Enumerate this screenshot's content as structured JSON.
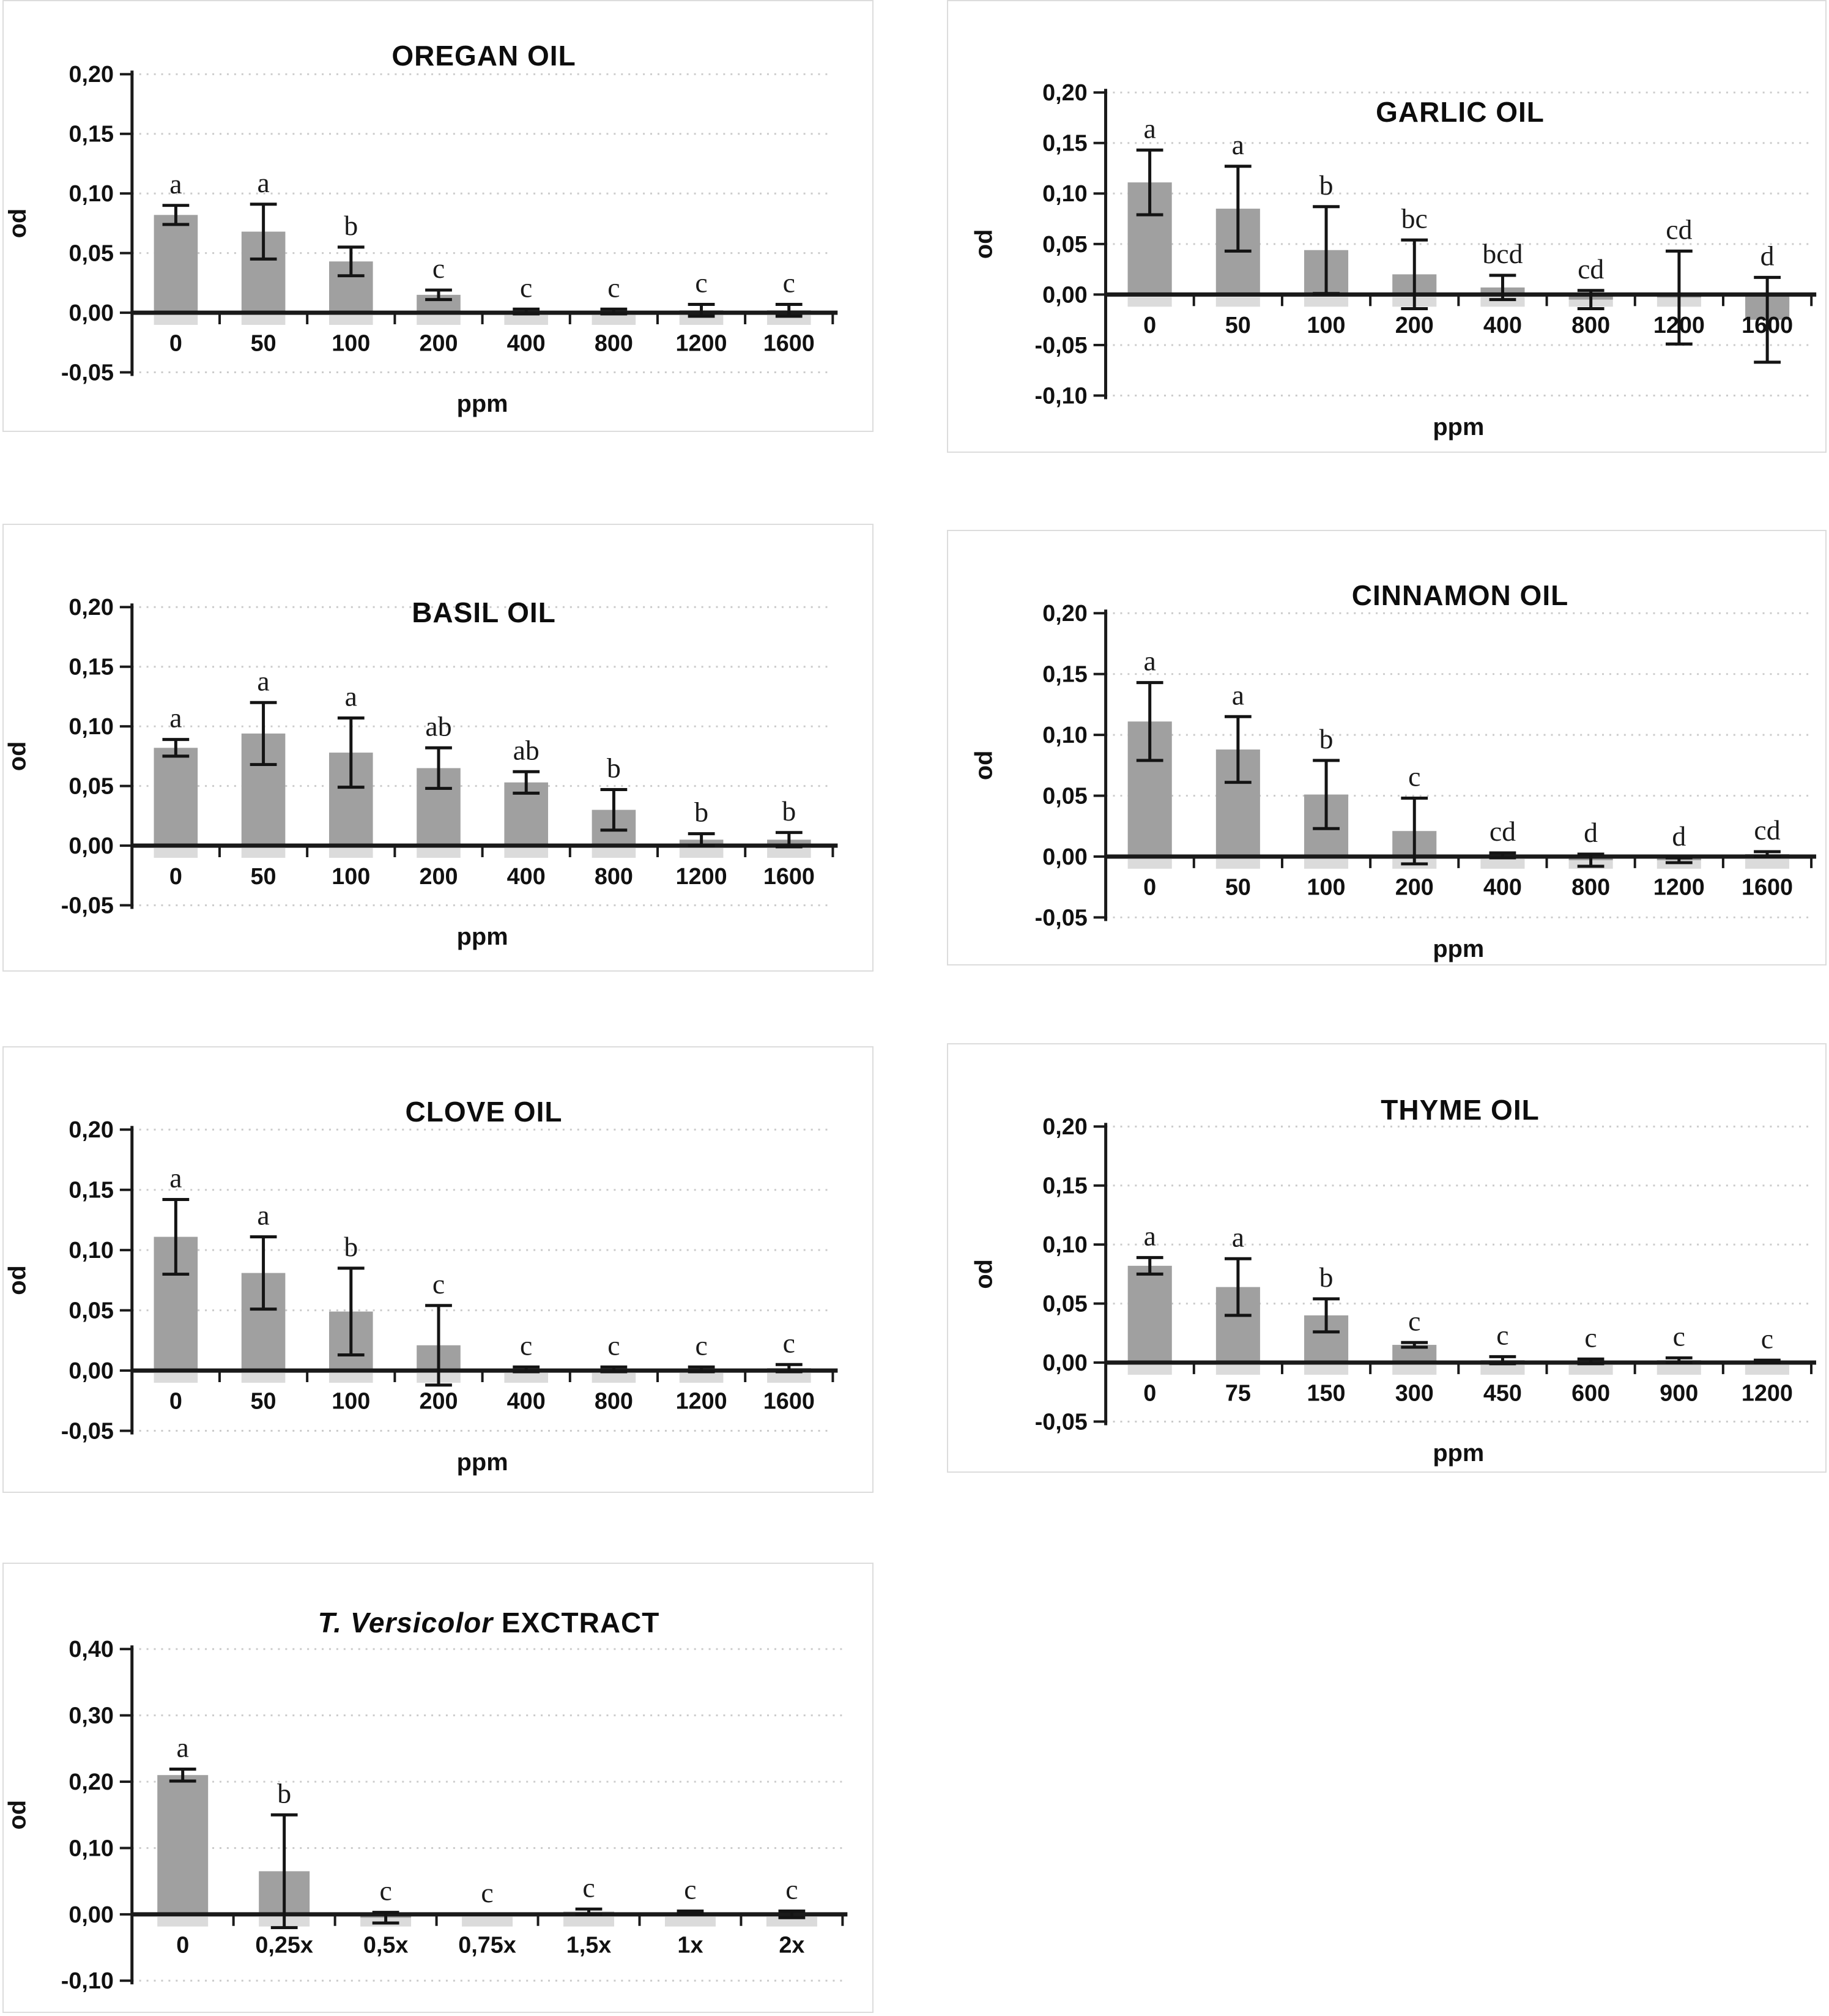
{
  "style": {
    "bar_fill": "#a0a0a0",
    "bar_shadow": "#dbdbdb",
    "axis": "#1a1a1a",
    "grid": "#cbcbcb",
    "error": "#141414",
    "panel_border": "#dcdcdc",
    "background": "#ffffff"
  },
  "chart_data": [
    {
      "type": "bar",
      "title": "OREGAN OIL",
      "xlabel": "ppm",
      "ylabel": "od",
      "categories": [
        "0",
        "50",
        "100",
        "200",
        "400",
        "800",
        "1200",
        "1600"
      ],
      "values": [
        0.082,
        0.068,
        0.043,
        0.015,
        0.001,
        0.001,
        0.002,
        0.002
      ],
      "errors": [
        0.008,
        0.023,
        0.012,
        0.004,
        0.002,
        0.002,
        0.005,
        0.005
      ],
      "letters": [
        "a",
        "a",
        "b",
        "c",
        "c",
        "c",
        "c",
        "c"
      ],
      "ylim": [
        -0.05,
        0.2
      ],
      "ystep": 0.05,
      "yticks": [
        "0,20",
        "0,15",
        "0,10",
        "0,05",
        "0,00",
        "-0,05"
      ],
      "grid": true,
      "legend": null
    },
    {
      "type": "bar",
      "title": "GARLIC OIL",
      "xlabel": "ppm",
      "ylabel": "od",
      "categories": [
        "0",
        "50",
        "100",
        "200",
        "400",
        "800",
        "1200",
        "1600"
      ],
      "values": [
        0.111,
        0.085,
        0.044,
        0.02,
        0.007,
        -0.005,
        -0.003,
        -0.025
      ],
      "errors": [
        0.032,
        0.042,
        0.043,
        0.034,
        0.012,
        0.009,
        0.046,
        0.042
      ],
      "letters": [
        "a",
        "a",
        "b",
        "bc",
        "bcd",
        "cd",
        "cd",
        "d"
      ],
      "ylim": [
        -0.1,
        0.2
      ],
      "ystep": 0.05,
      "yticks": [
        "0,20",
        "0,15",
        "0,10",
        "0,05",
        "0,00",
        "-0,05",
        "-0,10"
      ],
      "grid": true,
      "legend": null
    },
    {
      "type": "bar",
      "title": "BASIL OIL",
      "xlabel": "ppm",
      "ylabel": "od",
      "categories": [
        "0",
        "50",
        "100",
        "200",
        "400",
        "800",
        "1200",
        "1600"
      ],
      "values": [
        0.082,
        0.094,
        0.078,
        0.065,
        0.053,
        0.03,
        0.005,
        0.005
      ],
      "errors": [
        0.007,
        0.026,
        0.029,
        0.017,
        0.009,
        0.017,
        0.005,
        0.006
      ],
      "letters": [
        "a",
        "a",
        "a",
        "ab",
        "ab",
        "b",
        "b",
        "b"
      ],
      "ylim": [
        -0.05,
        0.2
      ],
      "ystep": 0.05,
      "yticks": [
        "0,20",
        "0,15",
        "0,10",
        "0,05",
        "0,00",
        "-0,05"
      ],
      "grid": true,
      "legend": null
    },
    {
      "type": "bar",
      "title": "CINNAMON OIL",
      "xlabel": "ppm",
      "ylabel": "od",
      "categories": [
        "0",
        "50",
        "100",
        "200",
        "400",
        "800",
        "1200",
        "1600"
      ],
      "values": [
        0.111,
        0.088,
        0.051,
        0.021,
        0.001,
        -0.003,
        -0.003,
        0.002
      ],
      "errors": [
        0.032,
        0.027,
        0.028,
        0.027,
        0.002,
        0.005,
        0.002,
        0.002
      ],
      "letters": [
        "a",
        "a",
        "b",
        "c",
        "cd",
        "d",
        "d",
        "cd"
      ],
      "ylim": [
        -0.05,
        0.2
      ],
      "ystep": 0.05,
      "yticks": [
        "0,20",
        "0,15",
        "0,10",
        "0,05",
        "0,00",
        "-0,05"
      ],
      "grid": true,
      "legend": null
    },
    {
      "type": "bar",
      "title": "CLOVE OIL",
      "xlabel": "ppm",
      "ylabel": "od",
      "categories": [
        "0",
        "50",
        "100",
        "200",
        "400",
        "800",
        "1200",
        "1600"
      ],
      "values": [
        0.111,
        0.081,
        0.049,
        0.021,
        0.001,
        0.001,
        0.001,
        0.002
      ],
      "errors": [
        0.031,
        0.03,
        0.036,
        0.033,
        0.002,
        0.002,
        0.002,
        0.003
      ],
      "letters": [
        "a",
        "a",
        "b",
        "c",
        "c",
        "c",
        "c",
        "c"
      ],
      "ylim": [
        -0.05,
        0.2
      ],
      "ystep": 0.05,
      "yticks": [
        "0,20",
        "0,15",
        "0,10",
        "0,05",
        "0,00",
        "-0,05"
      ],
      "grid": true,
      "legend": null
    },
    {
      "type": "bar",
      "title": "THYME OIL",
      "xlabel": "ppm",
      "ylabel": "od",
      "categories": [
        "0",
        "75",
        "150",
        "300",
        "450",
        "600",
        "900",
        "1200"
      ],
      "values": [
        0.082,
        0.064,
        0.04,
        0.015,
        0.002,
        0.001,
        0.002,
        0.001
      ],
      "errors": [
        0.007,
        0.024,
        0.014,
        0.002,
        0.003,
        0.002,
        0.002,
        0.001
      ],
      "letters": [
        "a",
        "a",
        "b",
        "c",
        "c",
        "c",
        "c",
        "c"
      ],
      "ylim": [
        -0.05,
        0.2
      ],
      "ystep": 0.05,
      "yticks": [
        "0,20",
        "0,15",
        "0,10",
        "0,05",
        "0,00",
        "-0,05"
      ],
      "grid": true,
      "legend": null
    },
    {
      "type": "bar",
      "title": "T. Versicolor EXCTRACT",
      "title_italic": "T. Versicolor",
      "title_rest": " EXCTRACT",
      "xlabel": "",
      "ylabel": "od",
      "categories": [
        "0",
        "0,25x",
        "0,5x",
        "0,75x",
        "1,5x",
        "1x",
        "2x"
      ],
      "values": [
        0.21,
        0.065,
        -0.005,
        0.0,
        0.004,
        0.003,
        0.0
      ],
      "errors": [
        0.009,
        0.085,
        0.008,
        0.0,
        0.004,
        0.002,
        0.005
      ],
      "letters": [
        "a",
        "b",
        "c",
        "c",
        "c",
        "c",
        "c"
      ],
      "ylim": [
        -0.1,
        0.4
      ],
      "ystep": 0.1,
      "yticks": [
        "0,40",
        "0,30",
        "0,20",
        "0,10",
        "0,00",
        "-0,10"
      ],
      "grid": true,
      "legend": null
    }
  ]
}
